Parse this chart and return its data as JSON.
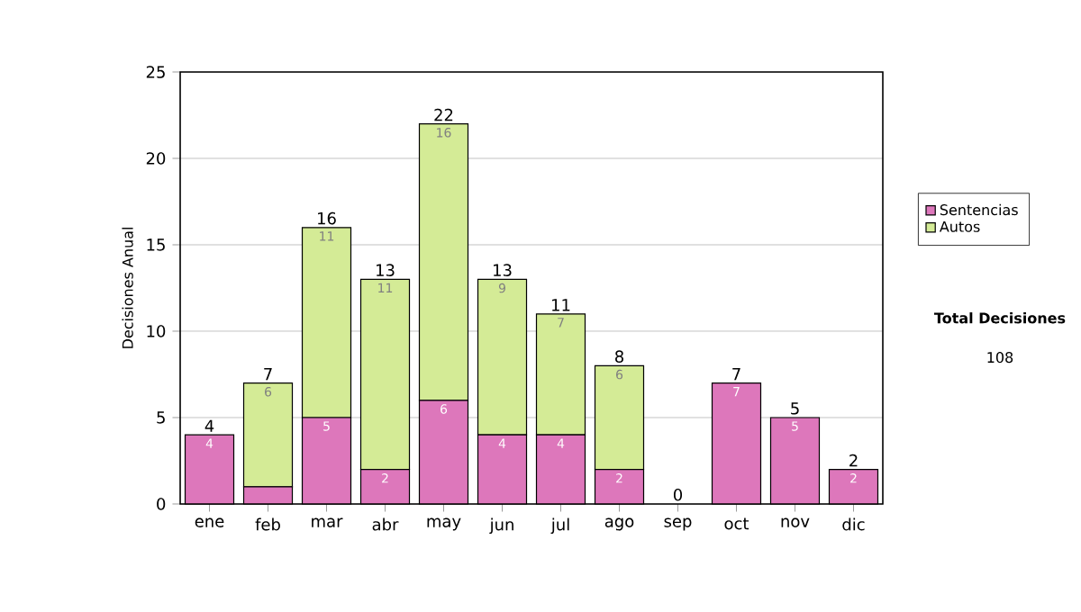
{
  "chart_data": {
    "type": "bar",
    "stacked": true,
    "ylabel": "Decisiones Anual",
    "categories": [
      "ene",
      "feb",
      "mar",
      "abr",
      "may",
      "jun",
      "jul",
      "ago",
      "sep",
      "oct",
      "nov",
      "dic"
    ],
    "series": [
      {
        "name": "Sentencias",
        "color": "#dd77bb",
        "values": [
          4,
          1,
          5,
          2,
          6,
          4,
          4,
          2,
          0,
          7,
          5,
          2
        ],
        "value_labels": [
          "4",
          null,
          "5",
          "2",
          "6",
          "4",
          "4",
          "2",
          null,
          "7",
          "5",
          "2"
        ]
      },
      {
        "name": "Autos",
        "color": "#d4eb96",
        "values": [
          0,
          6,
          11,
          11,
          16,
          9,
          7,
          6,
          0,
          0,
          0,
          0
        ],
        "value_labels": [
          null,
          "6",
          "11",
          "11",
          "16",
          "9",
          "7",
          "6",
          null,
          null,
          null,
          null
        ]
      }
    ],
    "totals": [
      "4",
      "7",
      "16",
      "13",
      "22",
      "13",
      "11",
      "8",
      "0",
      "7",
      "5",
      "2"
    ],
    "ylim": [
      0,
      25
    ],
    "yticks": [
      0,
      5,
      10,
      15,
      20,
      25
    ],
    "grid": "y",
    "legend": "right",
    "annotations": [
      "**Total Decisiones**",
      "108"
    ]
  }
}
